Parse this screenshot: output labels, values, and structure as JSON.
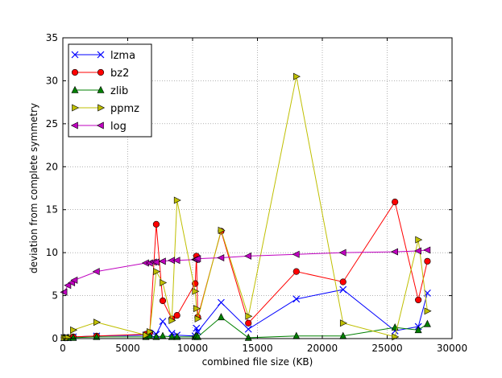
{
  "chart_data": {
    "type": "line",
    "title": "",
    "xlabel": "combined file size (KB)",
    "ylabel": "deviation from complete symmetry",
    "xlim": [
      0,
      30000
    ],
    "ylim": [
      0,
      35
    ],
    "xticks": [
      0,
      5000,
      10000,
      15000,
      20000,
      25000,
      30000
    ],
    "yticks": [
      0,
      5,
      10,
      15,
      20,
      25,
      30,
      35
    ],
    "xtick_labels": [
      "0",
      "5000",
      "10000",
      "15000",
      "20000",
      "25000",
      "30000"
    ],
    "ytick_labels": [
      "0",
      "5",
      "10",
      "15",
      "20",
      "25",
      "30",
      "35"
    ],
    "grid": true,
    "legend_position": "top-left",
    "series": [
      {
        "name": "lzma",
        "color": "#0000ff",
        "marker": "x",
        "x": [
          100,
          400,
          800,
          2600,
          6400,
          6700,
          7200,
          7700,
          8400,
          8800,
          10200,
          10300,
          10400,
          12200,
          14300,
          18000,
          21600,
          25600,
          27400,
          28100
        ],
        "y": [
          0.1,
          0.1,
          0.2,
          0.3,
          0.4,
          0.6,
          0.5,
          2.0,
          0.6,
          0.4,
          0.3,
          1.2,
          0.8,
          4.2,
          1.1,
          4.6,
          5.7,
          0.9,
          1.4,
          5.3
        ]
      },
      {
        "name": "bz2",
        "color": "#ff0000",
        "marker": "circle",
        "x": [
          100,
          400,
          800,
          2600,
          6400,
          6700,
          7200,
          7700,
          8400,
          8800,
          10200,
          10300,
          10400,
          12200,
          14300,
          18000,
          21600,
          25600,
          27400,
          28100
        ],
        "y": [
          0.1,
          0.1,
          0.2,
          0.3,
          0.5,
          0.7,
          13.3,
          4.4,
          2.3,
          2.7,
          6.4,
          9.6,
          2.5,
          12.5,
          1.8,
          7.8,
          6.6,
          15.9,
          4.5,
          9.0
        ]
      },
      {
        "name": "zlib",
        "color": "#008000",
        "marker": "triangle-up",
        "x": [
          100,
          400,
          800,
          2600,
          6400,
          6700,
          7200,
          7700,
          8400,
          8800,
          10200,
          10300,
          10400,
          12200,
          14300,
          18000,
          21600,
          25600,
          27400,
          28100
        ],
        "y": [
          0.1,
          0.1,
          0.1,
          0.2,
          0.2,
          0.3,
          0.2,
          0.3,
          0.2,
          0.2,
          0.2,
          0.3,
          0.2,
          2.5,
          0.1,
          0.3,
          0.3,
          1.3,
          1.0,
          1.7
        ]
      },
      {
        "name": "ppmz",
        "color": "#bfbf00",
        "marker": "triangle-right",
        "x": [
          100,
          400,
          800,
          2600,
          6400,
          6700,
          7200,
          7700,
          8400,
          8800,
          10200,
          10300,
          10400,
          12200,
          14300,
          18000,
          21600,
          25600,
          27400,
          28100
        ],
        "y": [
          0.1,
          0.1,
          1.0,
          1.9,
          0.4,
          0.8,
          7.8,
          6.5,
          2.1,
          16.1,
          5.5,
          3.5,
          2.3,
          12.6,
          2.6,
          30.5,
          1.8,
          0.2,
          11.5,
          3.2
        ]
      },
      {
        "name": "log",
        "color": "#bf00bf",
        "marker": "triangle-left",
        "x": [
          100,
          400,
          700,
          900,
          2600,
          6400,
          6700,
          7000,
          7200,
          7700,
          8400,
          8800,
          10200,
          10300,
          10400,
          12200,
          14300,
          18000,
          21600,
          25600,
          27400,
          28100
        ],
        "y": [
          5.4,
          6.2,
          6.5,
          6.8,
          7.8,
          8.8,
          8.8,
          8.9,
          8.9,
          9.0,
          9.1,
          9.1,
          9.2,
          9.2,
          9.3,
          9.4,
          9.6,
          9.8,
          10.0,
          10.1,
          10.2,
          10.3
        ]
      }
    ]
  }
}
